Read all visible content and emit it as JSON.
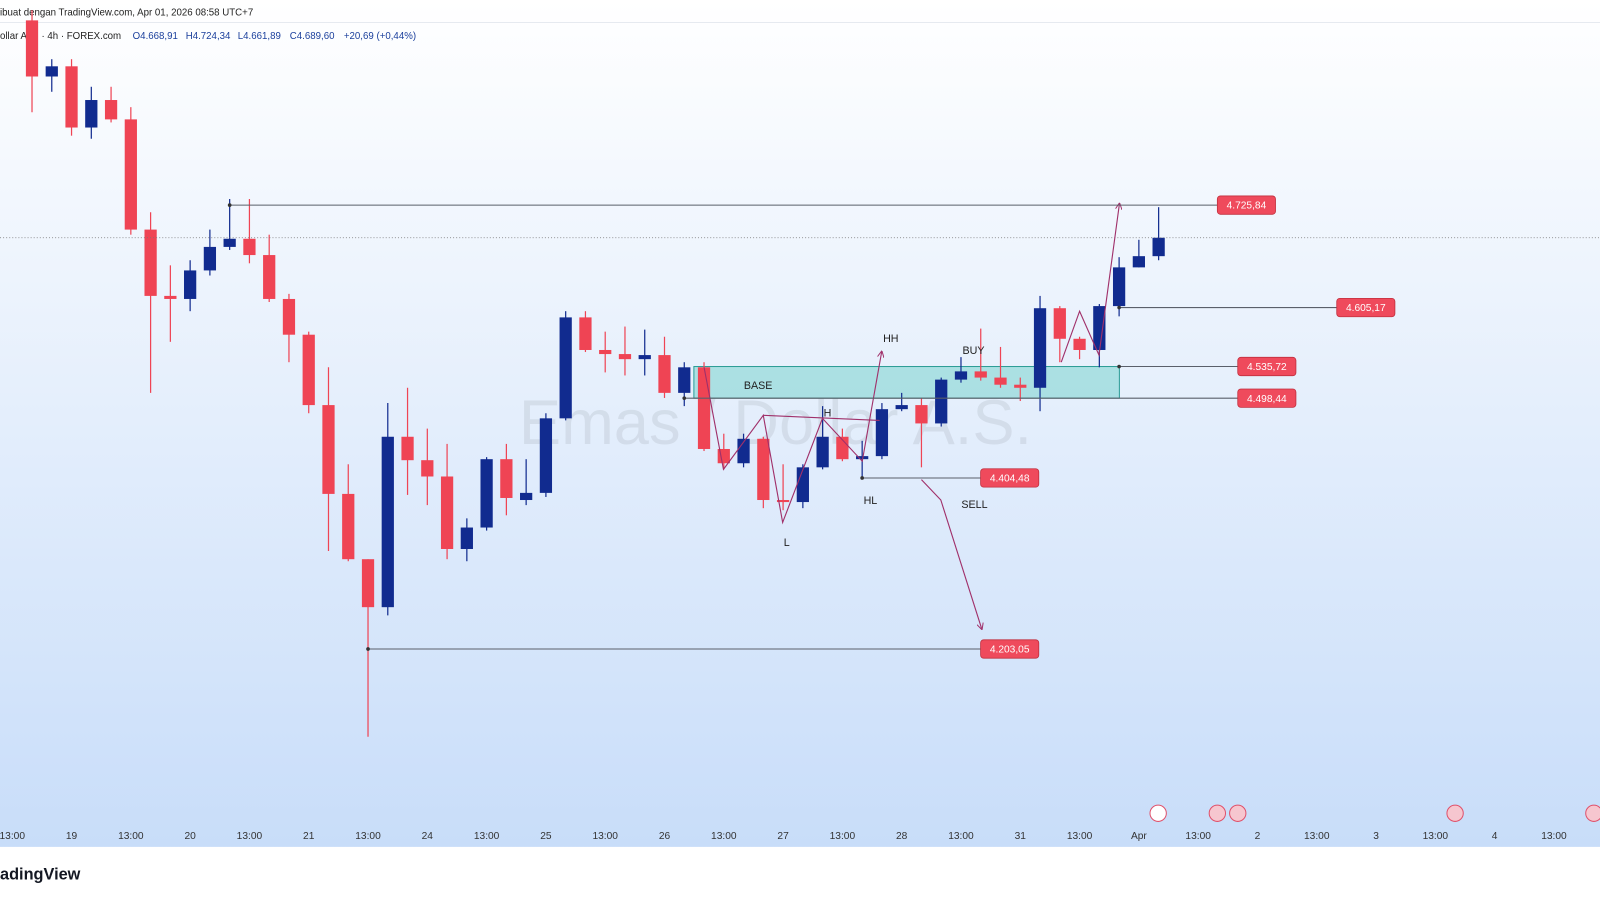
{
  "chart_data": {
    "type": "candlestick",
    "header": "ibuat dengan TradingView.com, Apr 01, 2026 08:58 UTC+7",
    "symbol": "ollar A.S. · 4h · FOREX.com",
    "ohlc_summary": [
      "O4.668,91",
      "H4.724,34",
      "L4.661,89",
      "C4.689,60",
      "+20,69 (+0,44%)"
    ],
    "watermark": "Emas / Dollar A.S.",
    "brand": "adingView",
    "categories": [
      "13:00",
      null,
      null,
      "19",
      null,
      null,
      "13:00",
      null,
      null,
      "20",
      null,
      null,
      "13:00",
      null,
      null,
      "21",
      null,
      null,
      "13:00",
      null,
      null,
      "24",
      null,
      null,
      "13:00",
      null,
      null,
      "25",
      null,
      null,
      "13:00",
      null,
      null,
      "26",
      null,
      null,
      "13:00",
      null,
      null,
      "27",
      null,
      null,
      "13:00",
      null,
      null,
      "28",
      null,
      null,
      "13:00",
      null,
      null,
      "31",
      null,
      null,
      "13:00",
      null,
      null,
      "Apr",
      null,
      null,
      "13:00",
      null,
      null,
      "2",
      null,
      null,
      "13:00",
      null,
      null,
      "3",
      null,
      null,
      "13:00",
      null,
      null,
      "4",
      null,
      null,
      "13:00"
    ],
    "open": [
      null,
      4943.4,
      4877.3,
      4889.3,
      4817.2,
      4849.6,
      4826.8,
      4697.0,
      4618.9,
      4615.3,
      4648.9,
      4676.6,
      4686.2,
      4667.0,
      4615.3,
      4573.2,
      4490.3,
      4385.7,
      4308.8,
      4252.3,
      4453.0,
      4425.4,
      4406.2,
      4320.8,
      4346.1,
      4426.6,
      4378.5,
      4386.9,
      4474.7,
      4593.6,
      4555.2,
      4550.4,
      4544.4,
      4549.2,
      4504.7,
      4534.8,
      4438.6,
      4421.8,
      4450.6,
      4378.5,
      4376.1,
      4417.0,
      4453.0,
      4426.6,
      4430.2,
      4485.5,
      4490.3,
      4468.7,
      4520.3,
      4530.0,
      4522.7,
      4514.3,
      4510.7,
      4604.4,
      4568.4,
      4555.2,
      4606.9,
      4652.5,
      4665.7,
      null,
      null,
      null,
      null,
      null,
      null,
      null,
      null,
      null,
      null,
      null,
      null,
      null,
      null,
      null,
      null,
      null,
      null,
      null,
      null
    ],
    "high": [
      null,
      4955.4,
      4897.7,
      4897.7,
      4865.2,
      4865.2,
      4841.2,
      4717.4,
      4654.9,
      4660.9,
      4697.0,
      4733.0,
      4733.0,
      4691.0,
      4621.3,
      4576.8,
      4534.8,
      4420.6,
      4308.8,
      4492.7,
      4510.7,
      4462.6,
      4444.6,
      4356.9,
      4429.0,
      4444.6,
      4426.6,
      4480.7,
      4600.9,
      4600.9,
      4576.8,
      4582.8,
      4579.2,
      4570.8,
      4540.8,
      4540.8,
      4456.6,
      4456.6,
      4453.0,
      4420.6,
      4420.6,
      4489.1,
      4462.6,
      4448.2,
      4492.7,
      4504.7,
      4498.7,
      4522.7,
      4546.8,
      4580.4,
      4558.8,
      4522.7,
      4618.9,
      4606.9,
      4570.8,
      4609.3,
      4664.5,
      4685.0,
      4723.4,
      null,
      null,
      null,
      null,
      null,
      null,
      null,
      null,
      null,
      null,
      null,
      null,
      null,
      null,
      null,
      null,
      null,
      null,
      null,
      null
    ],
    "low": [
      null,
      4835.2,
      4859.3,
      4807.6,
      4804.0,
      4823.2,
      4691.0,
      4504.7,
      4564.8,
      4600.9,
      4642.9,
      4673.0,
      4657.3,
      4611.7,
      4540.8,
      4480.7,
      4318.4,
      4306.4,
      4099.7,
      4242.7,
      4384.5,
      4372.5,
      4308.8,
      4306.4,
      4342.5,
      4360.5,
      4372.5,
      4382.1,
      4472.3,
      4552.8,
      4528.8,
      4525.2,
      4525.2,
      4498.7,
      4489.1,
      4436.2,
      4414.6,
      4417.0,
      4368.9,
      4366.5,
      4368.9,
      4414.6,
      4424.2,
      4405.0,
      4426.6,
      4483.1,
      4417.0,
      4465.0,
      4516.7,
      4519.1,
      4510.7,
      4495.1,
      4483.1,
      4540.8,
      4544.4,
      4534.8,
      4594.8,
      4652.5,
      4660.9,
      null,
      null,
      null,
      null,
      null,
      null,
      null,
      null,
      null,
      null,
      null,
      null,
      null,
      null,
      null,
      null,
      null,
      null,
      null,
      null
    ],
    "close": [
      null,
      4877.3,
      4889.3,
      4817.2,
      4849.6,
      4826.8,
      4697.0,
      4618.9,
      4615.3,
      4648.9,
      4676.6,
      4686.2,
      4667.0,
      4615.3,
      4573.2,
      4490.3,
      4385.7,
      4308.8,
      4252.3,
      4453.0,
      4425.4,
      4406.2,
      4320.8,
      4346.1,
      4426.6,
      4380.9,
      4386.9,
      4474.7,
      4593.6,
      4555.2,
      4550.4,
      4544.4,
      4549.2,
      4504.7,
      4534.8,
      4438.6,
      4421.8,
      4450.6,
      4378.5,
      4376.1,
      4417.0,
      4453.0,
      4426.6,
      4430.2,
      4485.5,
      4490.3,
      4468.7,
      4520.3,
      4530.0,
      4522.7,
      4514.3,
      4510.7,
      4604.4,
      4568.4,
      4555.2,
      4606.9,
      4652.5,
      4665.7,
      4687.4,
      null,
      null,
      null,
      null,
      null,
      null,
      null,
      null,
      null,
      null,
      null,
      null,
      null,
      null,
      null,
      null,
      null,
      null,
      null,
      null
    ],
    "colors": {
      "up": "#112b8f",
      "down": "#ef4454"
    },
    "ylim": [
      3996.35,
      4940.96
    ],
    "levels": [
      {
        "value": 4725.84,
        "label": "4.725,84",
        "start": 11
      },
      {
        "value": 4605.17,
        "label": "4.605,17",
        "start": 56
      },
      {
        "value": 4535.72,
        "label": "4.535,72",
        "start": 56
      },
      {
        "value": 4498.44,
        "label": "4.498,44",
        "start": 34
      },
      {
        "value": 4404.48,
        "label": "4.404,48",
        "start": 43
      },
      {
        "value": 4203.05,
        "label": "4.203,05",
        "start": 18
      }
    ],
    "zone_label": "BASE",
    "annotations": [
      "HH",
      "BUY",
      "H",
      "HL",
      "L",
      "SELL"
    ]
  }
}
